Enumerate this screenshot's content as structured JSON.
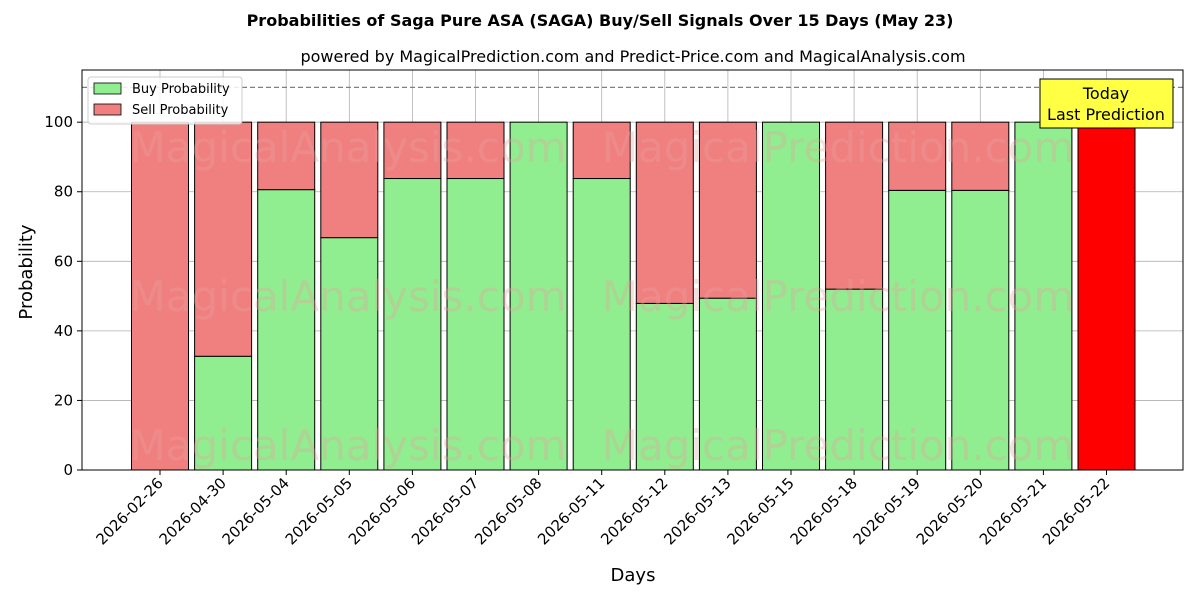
{
  "chart_data": {
    "type": "bar",
    "stacked": true,
    "title": "Probabilities of Saga Pure ASA (SAGA) Buy/Sell Signals Over 15 Days (May 23)",
    "subtitle": "powered by MagicalPrediction.com and Predict-Price.com and MagicalAnalysis.com",
    "xlabel": "Days",
    "ylabel": "Probability",
    "ylim": [
      0,
      115
    ],
    "yticks": [
      0,
      20,
      40,
      60,
      80,
      100
    ],
    "reference_line": 110,
    "grid": true,
    "legend_placement": "top-left",
    "categories": [
      "2026-02-26",
      "2026-04-30",
      "2026-05-04",
      "2026-05-05",
      "2026-05-06",
      "2026-05-07",
      "2026-05-08",
      "2026-05-11",
      "2026-05-12",
      "2026-05-13",
      "2026-05-15",
      "2026-05-18",
      "2026-05-19",
      "2026-05-20",
      "2026-05-21",
      "2026-05-22"
    ],
    "series": [
      {
        "name": "Buy Probability",
        "color": "#90ee90",
        "values": [
          0,
          32.7,
          80.6,
          66.8,
          83.8,
          83.8,
          100,
          83.8,
          47.9,
          49.4,
          100,
          52.0,
          80.4,
          80.4,
          100,
          0
        ]
      },
      {
        "name": "Sell Probability",
        "color": "#f08080",
        "values": [
          100,
          67.3,
          19.4,
          33.2,
          16.2,
          16.2,
          0,
          16.2,
          52.1,
          50.6,
          0,
          48.0,
          19.6,
          19.6,
          0,
          100
        ]
      }
    ],
    "last_bar_color": "#ff0000",
    "annotation": {
      "lines": [
        "Today",
        "Last Prediction"
      ],
      "color": "#ffff44"
    },
    "watermarks": [
      "MagicalAnalysis.com",
      "MagicalPrediction.com"
    ]
  }
}
